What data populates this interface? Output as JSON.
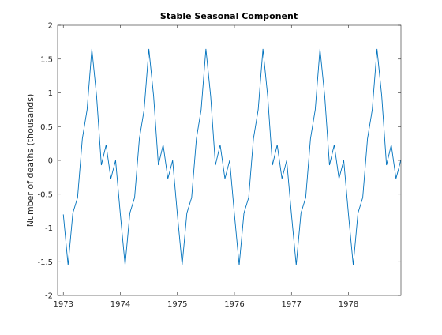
{
  "chart_data": {
    "type": "line",
    "title": "Stable Seasonal Component",
    "xlabel": "",
    "ylabel": "Number of deaths (thousands)",
    "xlim": [
      1972.9,
      1978.92
    ],
    "ylim": [
      -2,
      2
    ],
    "xticks": [
      1973,
      1974,
      1975,
      1976,
      1977,
      1978
    ],
    "xtick_labels": [
      "1973",
      "1974",
      "1975",
      "1976",
      "1977",
      "1978"
    ],
    "yticks": [
      -2,
      -1.5,
      -1,
      -0.5,
      0,
      0.5,
      1,
      1.5,
      2
    ],
    "ytick_labels": [
      "-2",
      "-1.5",
      "-1",
      "-0.5",
      "0",
      "0.5",
      "1",
      "1.5",
      "2"
    ],
    "grid": false,
    "line_color": "#0072BD",
    "series": [
      {
        "start_year": 1973,
        "points_per_year": 12,
        "values": [
          -0.8,
          -1.55,
          -0.78,
          -0.55,
          0.32,
          0.75,
          1.65,
          0.95,
          -0.07,
          0.23,
          -0.27,
          0.0,
          -0.8,
          -1.55,
          -0.78,
          -0.55,
          0.32,
          0.75,
          1.65,
          0.95,
          -0.07,
          0.23,
          -0.27,
          0.0,
          -0.8,
          -1.55,
          -0.78,
          -0.55,
          0.32,
          0.75,
          1.65,
          0.95,
          -0.07,
          0.23,
          -0.27,
          0.0,
          -0.8,
          -1.55,
          -0.78,
          -0.55,
          0.32,
          0.75,
          1.65,
          0.95,
          -0.07,
          0.23,
          -0.27,
          0.0,
          -0.8,
          -1.55,
          -0.78,
          -0.55,
          0.32,
          0.75,
          1.65,
          0.95,
          -0.07,
          0.23,
          -0.27,
          0.0,
          -0.8,
          -1.55,
          -0.78,
          -0.55,
          0.32,
          0.75,
          1.65,
          0.95,
          -0.07,
          0.23,
          -0.27,
          0.0
        ]
      }
    ]
  }
}
